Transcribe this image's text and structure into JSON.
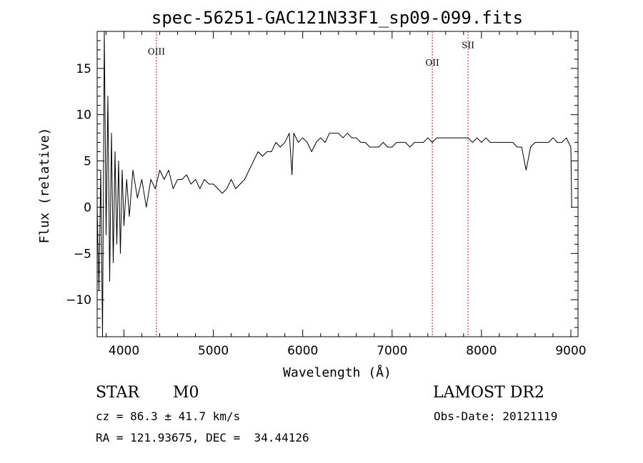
{
  "chart_data": {
    "type": "line",
    "title": "spec-56251-GAC121N33F1_sp09-099.fits",
    "xlabel": "Wavelength (Å)",
    "ylabel": "Flux (relative)",
    "xlim": [
      3700,
      9080
    ],
    "ylim": [
      -14,
      19
    ],
    "x_ticks": [
      4000,
      5000,
      6000,
      7000,
      8000,
      9000
    ],
    "y_ticks": [
      -10,
      -5,
      0,
      5,
      10,
      15
    ],
    "x_tick_labels": [
      "4000",
      "5000",
      "6000",
      "7000",
      "8000",
      "9000"
    ],
    "y_tick_labels": [
      "−10",
      "−5",
      "0",
      "5",
      "10",
      "15"
    ],
    "grid": false,
    "line_color": "#000000",
    "marker_color": "#a0281e",
    "series": [
      {
        "x": [
          3700,
          3720,
          3740,
          3760,
          3780,
          3800,
          3820,
          3840,
          3860,
          3880,
          3900,
          3920,
          3940,
          3960,
          3980,
          4000,
          4030,
          4060,
          4100,
          4150,
          4200,
          4250,
          4300,
          4350,
          4400,
          4450,
          4500,
          4550,
          4600,
          4650,
          4700,
          4750,
          4800,
          4850,
          4900,
          4950,
          5000,
          5050,
          5100,
          5150,
          5200,
          5250,
          5300,
          5350,
          5400,
          5450,
          5500,
          5550,
          5600,
          5650,
          5700,
          5750,
          5800,
          5850,
          5880,
          5900,
          5950,
          6000,
          6050,
          6100,
          6150,
          6200,
          6250,
          6300,
          6350,
          6400,
          6450,
          6500,
          6550,
          6600,
          6650,
          6700,
          6750,
          6800,
          6850,
          6900,
          6950,
          7000,
          7050,
          7100,
          7150,
          7200,
          7250,
          7300,
          7350,
          7400,
          7450,
          7500,
          7550,
          7600,
          7650,
          7700,
          7750,
          7800,
          7850,
          7900,
          7950,
          8000,
          8050,
          8100,
          8150,
          8200,
          8250,
          8300,
          8350,
          8400,
          8450,
          8500,
          8550,
          8600,
          8650,
          8700,
          8750,
          8800,
          8850,
          8900,
          8950,
          9000,
          9010
        ],
        "y": [
          0,
          -9,
          4,
          -14,
          19,
          -3,
          12,
          -8,
          8,
          -6,
          6,
          -4,
          5,
          -5,
          4,
          -2,
          3,
          -1,
          4,
          1,
          3,
          0,
          3,
          2,
          4,
          3,
          4,
          2,
          3,
          3,
          3.5,
          2.5,
          3,
          2,
          3,
          2.5,
          2.5,
          2,
          1.5,
          2,
          3,
          2,
          2.5,
          3,
          4,
          5,
          6,
          5.5,
          6,
          6,
          7,
          6.5,
          7,
          8,
          3.5,
          8,
          7,
          7.5,
          7,
          6,
          7,
          7.5,
          7,
          8,
          8,
          8,
          7.5,
          8,
          7.5,
          7.5,
          7,
          7,
          6.5,
          6.5,
          6.5,
          7,
          6.5,
          6.5,
          7,
          7,
          7,
          6.5,
          7,
          7,
          7,
          7.5,
          7,
          7.5,
          7.5,
          7.5,
          7.5,
          7.5,
          7.5,
          7.5,
          7.5,
          7,
          7.5,
          7,
          7.5,
          7,
          7,
          7,
          7,
          7,
          7,
          6.5,
          6.5,
          4,
          6.5,
          7,
          7,
          7,
          7,
          7.5,
          7,
          7,
          7.5,
          6.5,
          0
        ]
      }
    ],
    "line_markers": [
      {
        "label": "OIII",
        "x": 4363,
        "label_y": 16.5
      },
      {
        "label": "OII",
        "x": 7450,
        "label_y": 15.3
      },
      {
        "label": "SII",
        "x": 7850,
        "label_y": 17.2
      }
    ]
  },
  "info": {
    "class_label": "STAR",
    "subclass_label": "M0",
    "survey_label": "LAMOST DR2",
    "redshift_text": "cz = 86.3 ± 41.7 km/s",
    "obs_date_text": "Obs-Date: 20121119",
    "coords_text": "RA = 121.93675, DEC =  34.44126"
  }
}
